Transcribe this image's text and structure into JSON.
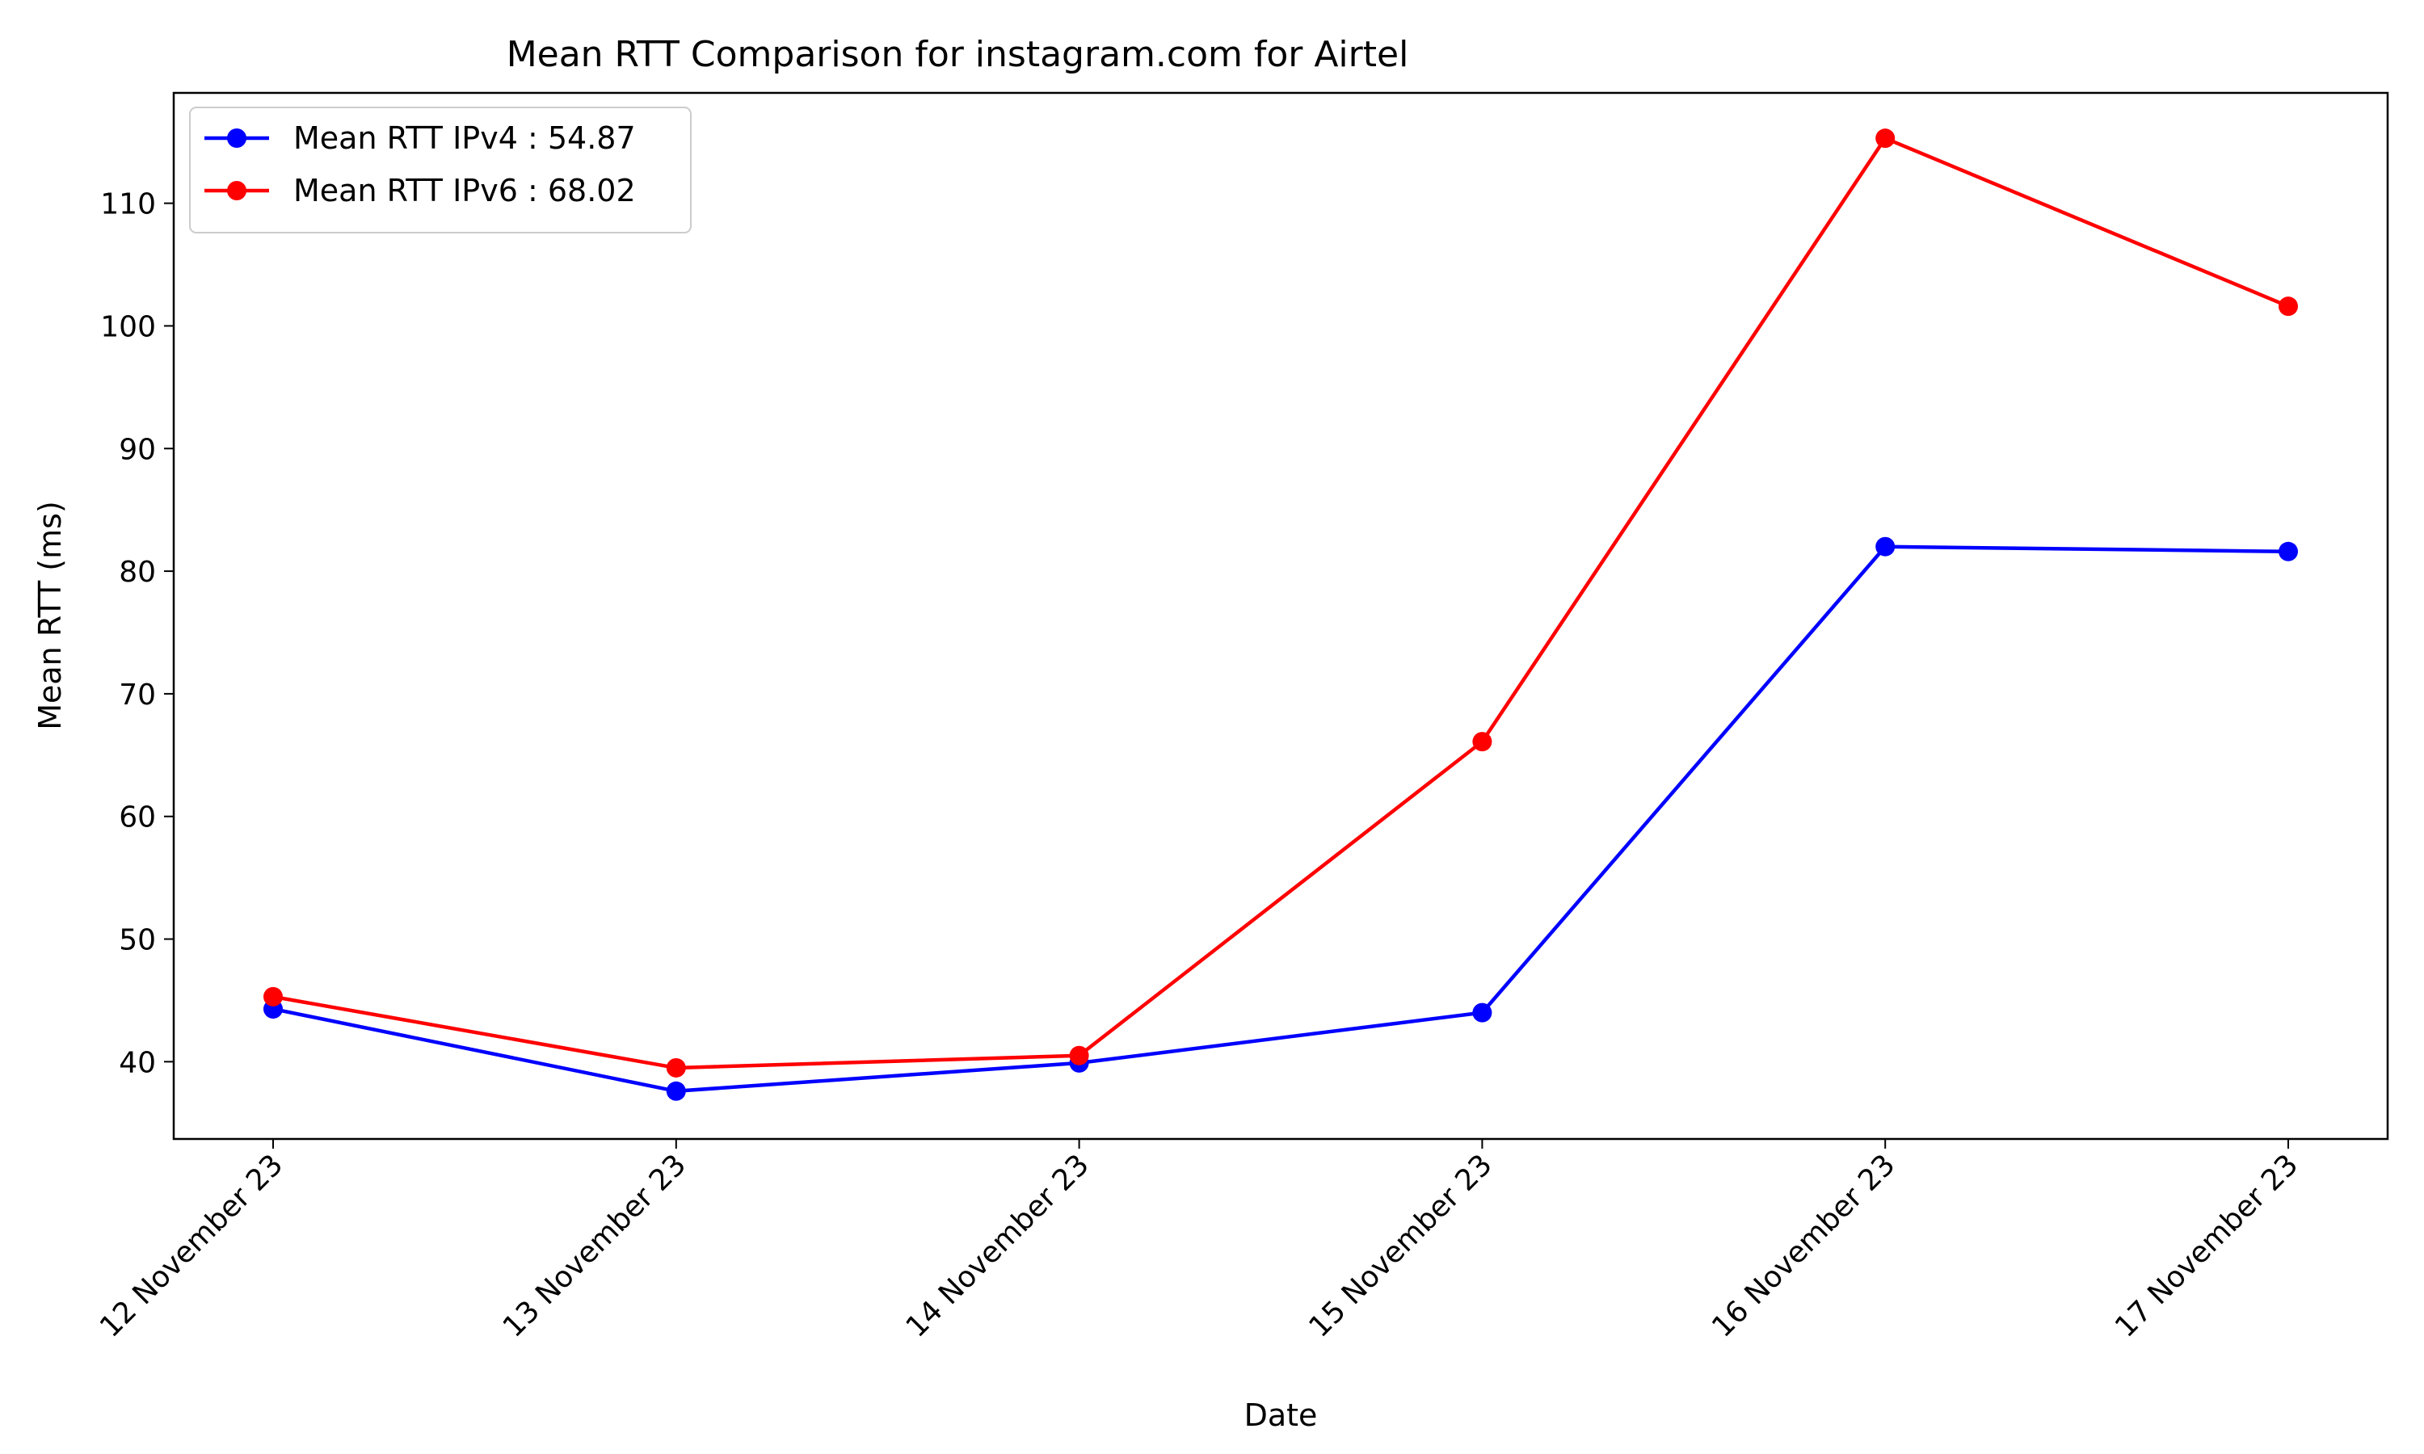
{
  "chart_data": {
    "type": "line",
    "title": "Mean RTT Comparison for instagram.com for Airtel",
    "xlabel": "Date",
    "ylabel": "Mean RTT (ms)",
    "categories": [
      "12 November 23",
      "13 November 23",
      "14 November 23",
      "15 November 23",
      "16 November 23",
      "17 November 23"
    ],
    "ylim": [
      33.7,
      119.0
    ],
    "yticks": [
      40,
      50,
      60,
      70,
      80,
      90,
      100,
      110
    ],
    "grid": false,
    "legend_position": "top-left",
    "series": [
      {
        "name": "Mean RTT IPv4 : 54.87",
        "color": "#0000ff",
        "values": [
          44.3,
          37.6,
          39.9,
          44.0,
          82.0,
          81.6
        ]
      },
      {
        "name": "Mean RTT IPv6 : 68.02",
        "color": "#ff0000",
        "values": [
          45.3,
          39.5,
          40.5,
          66.1,
          115.3,
          101.6
        ]
      }
    ]
  }
}
